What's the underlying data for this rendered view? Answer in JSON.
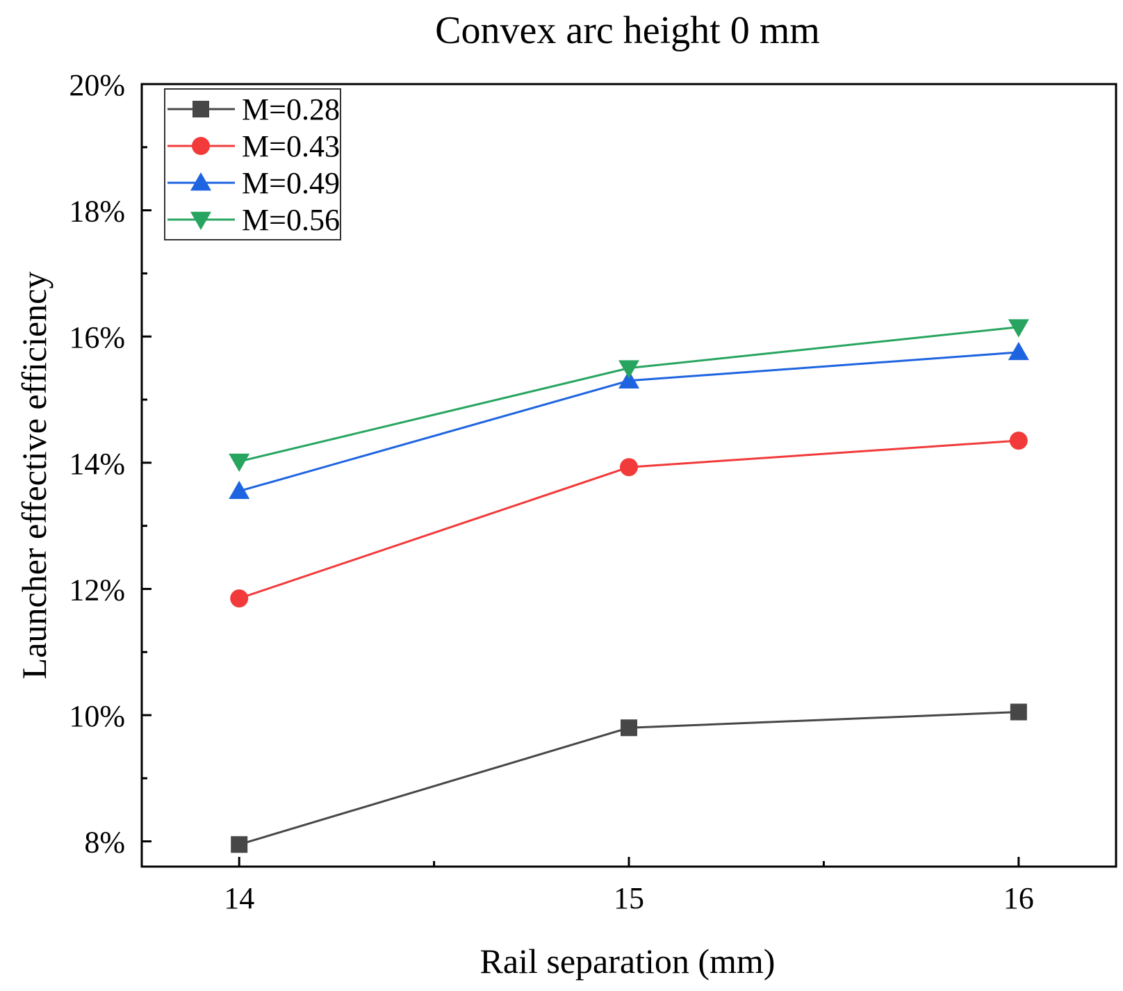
{
  "chart_data": {
    "type": "line",
    "title": "Convex arc height 0 mm",
    "xlabel": "Rail separation (mm)",
    "ylabel": "Launcher effective efficiency",
    "x": [
      14,
      15,
      16
    ],
    "xlim": [
      13.75,
      16.25
    ],
    "ylim": [
      7.6,
      20
    ],
    "yticks": [
      8,
      10,
      12,
      14,
      16,
      18,
      20
    ],
    "ytick_labels": [
      "8%",
      "10%",
      "12%",
      "14%",
      "16%",
      "18%",
      "20%"
    ],
    "xticks": [
      14,
      15,
      16
    ],
    "xtick_labels": [
      "14",
      "15",
      "16"
    ],
    "legend_position": "top-left",
    "series": [
      {
        "name": "M=0.28",
        "values": [
          7.95,
          9.8,
          10.05
        ],
        "color": "#474747",
        "marker": "square"
      },
      {
        "name": "M=0.43",
        "values": [
          11.85,
          13.93,
          14.35
        ],
        "color": "#f23a3a",
        "marker": "circle"
      },
      {
        "name": "M=0.49",
        "values": [
          13.55,
          15.3,
          15.75
        ],
        "color": "#1e64e0",
        "marker": "triangle-up"
      },
      {
        "name": "M=0.56",
        "values": [
          14.02,
          15.5,
          16.15
        ],
        "color": "#27a560",
        "marker": "triangle-down"
      }
    ]
  }
}
